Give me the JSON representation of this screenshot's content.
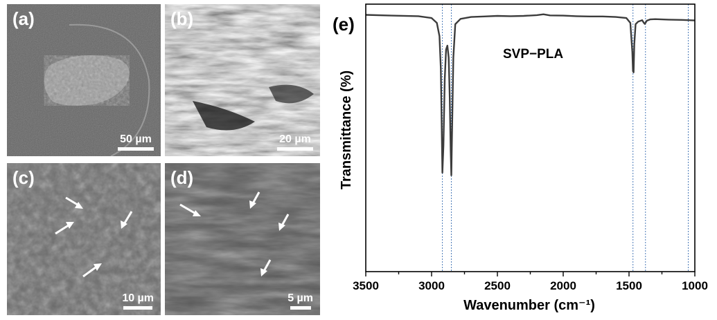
{
  "micrographs": [
    {
      "label": "(a)",
      "scale": "50 µm",
      "tone": "#6f6f6f"
    },
    {
      "label": "(b)",
      "scale": "20 µm",
      "tone": "#767676"
    },
    {
      "label": "(c)",
      "scale": "10 µm",
      "tone": "#6a6a6a"
    },
    {
      "label": "(d)",
      "scale": "5 µm",
      "tone": "#5a5a5a"
    }
  ],
  "chart_data": {
    "type": "line",
    "panel_label": "(e)",
    "title": "",
    "xlabel": "Wavenumber (cm⁻¹)",
    "ylabel": "Transmittance (%)",
    "xlim": [
      3500,
      1000
    ],
    "x_reversed": true,
    "xticks": [
      3500,
      3000,
      2500,
      2000,
      1500,
      1000
    ],
    "yticks_shown": false,
    "grid": false,
    "series": [
      {
        "name": "SVP−PLA",
        "color": "#3c3c3c",
        "x": [
          3500,
          3300,
          3100,
          3000,
          2960,
          2940,
          2930,
          2925,
          2918,
          2910,
          2900,
          2890,
          2880,
          2870,
          2862,
          2855,
          2850,
          2845,
          2835,
          2820,
          2780,
          2700,
          2600,
          2500,
          2400,
          2300,
          2200,
          2150,
          2100,
          2000,
          1900,
          1800,
          1700,
          1600,
          1520,
          1490,
          1475,
          1470,
          1465,
          1460,
          1450,
          1430,
          1400,
          1390,
          1380,
          1375,
          1365,
          1340,
          1300,
          1200,
          1100,
          1050,
          1000
        ],
        "y": [
          96.0,
          95.7,
          95.5,
          94.8,
          93.0,
          88.0,
          76.0,
          60.0,
          37.0,
          47.0,
          72.0,
          83.0,
          84.5,
          80.0,
          65.0,
          45.0,
          36.0,
          50.0,
          80.0,
          92.5,
          94.5,
          95.2,
          95.4,
          95.6,
          95.5,
          95.6,
          95.9,
          96.2,
          95.8,
          95.7,
          95.5,
          95.4,
          95.4,
          95.2,
          94.8,
          93.0,
          82.0,
          75.0,
          74.5,
          85.0,
          92.5,
          93.5,
          94.0,
          93.2,
          92.6,
          93.0,
          93.8,
          94.3,
          94.4,
          94.2,
          94.1,
          94.0,
          93.9
        ]
      }
    ],
    "ylim": [
      0,
      100
    ],
    "reference_lines": [
      2918,
      2850,
      1470,
      1375,
      1050
    ],
    "reference_line_color": "#4a7ab8"
  }
}
